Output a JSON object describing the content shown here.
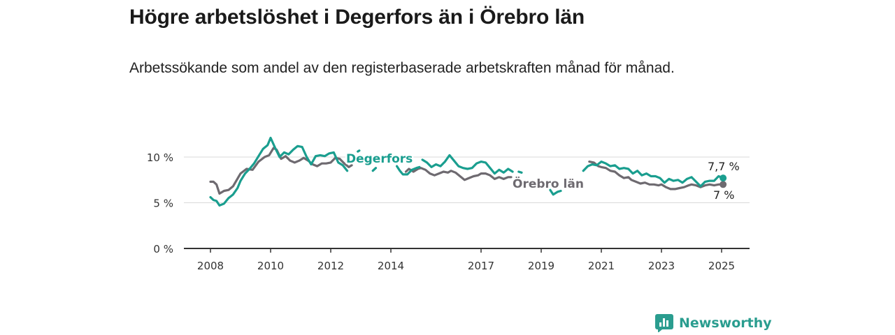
{
  "title": "Högre arbetslöshet i Degerfors än i Örebro län",
  "subtitle": "Arbetssökande som andel av den registerbaserade arbetskraften månad för månad.",
  "brand": {
    "name": "Newsworthy"
  },
  "colors": {
    "degerfors": "#1a9e8f",
    "orebro": "#6e6a70",
    "grid": "#d9d9d9",
    "axis": "#333333"
  },
  "chart_data": {
    "type": "line",
    "xlim": [
      2008.0,
      2025.5
    ],
    "ylim": [
      0,
      12.5
    ],
    "x_ticks": [
      {
        "label": "2008",
        "x": 2008.0
      },
      {
        "label": "2010",
        "x": 2010.0
      },
      {
        "label": "2012",
        "x": 2012.0
      },
      {
        "label": "2014",
        "x": 2014.0
      },
      {
        "label": "2017",
        "x": 2017.0
      },
      {
        "label": "2019",
        "x": 2019.0
      },
      {
        "label": "2021",
        "x": 2021.0
      },
      {
        "label": "2023",
        "x": 2023.0
      },
      {
        "label": "2025",
        "x": 2025.0
      }
    ],
    "y_ticks": [
      {
        "label": "0 %",
        "value": 0
      },
      {
        "label": "5 %",
        "value": 5
      },
      {
        "label": "10 %",
        "value": 10
      }
    ],
    "grid": true,
    "series": [
      {
        "name": "Örebro län",
        "color": "#6e6a70",
        "end_label": "7 %",
        "points": [
          [
            2008.0,
            7.3
          ],
          [
            2008.1,
            7.3
          ],
          [
            2008.2,
            7.0
          ],
          [
            2008.3,
            6.0
          ],
          [
            2008.45,
            6.3
          ],
          [
            2008.6,
            6.4
          ],
          [
            2008.75,
            6.8
          ],
          [
            2009.0,
            8.2
          ],
          [
            2009.2,
            8.7
          ],
          [
            2009.4,
            8.6
          ],
          [
            2009.6,
            9.5
          ],
          [
            2009.8,
            10.0
          ],
          [
            2009.95,
            10.2
          ],
          [
            2010.1,
            11.0
          ],
          [
            2010.2,
            10.8
          ],
          [
            2010.35,
            9.8
          ],
          [
            2010.5,
            10.1
          ],
          [
            2010.65,
            9.6
          ],
          [
            2010.8,
            9.4
          ],
          [
            2010.95,
            9.6
          ],
          [
            2011.1,
            9.9
          ],
          [
            2011.25,
            9.6
          ],
          [
            2011.4,
            9.2
          ],
          [
            2011.55,
            9.0
          ],
          [
            2011.7,
            9.3
          ],
          [
            2011.85,
            9.3
          ],
          [
            2012.0,
            9.4
          ],
          [
            2012.15,
            9.9
          ],
          [
            2012.3,
            9.8
          ],
          [
            2012.45,
            9.3
          ],
          [
            2012.6,
            8.9
          ],
          [
            2012.7,
            9.1
          ],
          null,
          [
            2014.5,
            8.4
          ],
          [
            2014.6,
            8.7
          ],
          [
            2014.75,
            8.4
          ],
          [
            2014.9,
            8.7
          ],
          [
            2015.0,
            8.8
          ],
          [
            2015.15,
            8.6
          ],
          [
            2015.3,
            8.2
          ],
          [
            2015.45,
            8.0
          ],
          [
            2015.6,
            8.2
          ],
          [
            2015.75,
            8.4
          ],
          [
            2015.9,
            8.3
          ],
          [
            2016.0,
            8.5
          ],
          [
            2016.15,
            8.3
          ],
          [
            2016.3,
            7.9
          ],
          [
            2016.45,
            7.5
          ],
          [
            2016.6,
            7.7
          ],
          [
            2016.75,
            7.9
          ],
          [
            2016.9,
            8.0
          ],
          [
            2017.0,
            8.2
          ],
          [
            2017.15,
            8.2
          ],
          [
            2017.3,
            8.0
          ],
          [
            2017.45,
            7.6
          ],
          [
            2017.6,
            7.8
          ],
          [
            2017.75,
            7.6
          ],
          [
            2017.9,
            7.8
          ],
          [
            2018.0,
            7.8
          ],
          null,
          [
            2020.6,
            9.5
          ],
          [
            2020.75,
            9.4
          ],
          [
            2020.9,
            9.0
          ],
          [
            2021.0,
            8.9
          ],
          [
            2021.15,
            8.8
          ],
          [
            2021.3,
            8.5
          ],
          [
            2021.45,
            8.4
          ],
          [
            2021.6,
            8.0
          ],
          [
            2021.75,
            7.7
          ],
          [
            2021.9,
            7.8
          ],
          [
            2022.0,
            7.5
          ],
          [
            2022.15,
            7.3
          ],
          [
            2022.3,
            7.1
          ],
          [
            2022.45,
            7.2
          ],
          [
            2022.6,
            7.0
          ],
          [
            2022.75,
            7.0
          ],
          [
            2022.9,
            6.9
          ],
          [
            2023.0,
            7.0
          ],
          [
            2023.15,
            6.7
          ],
          [
            2023.3,
            6.5
          ],
          [
            2023.45,
            6.5
          ],
          [
            2023.6,
            6.6
          ],
          [
            2023.75,
            6.7
          ],
          [
            2023.9,
            6.9
          ],
          [
            2024.0,
            7.0
          ],
          [
            2024.15,
            6.9
          ],
          [
            2024.3,
            6.7
          ],
          [
            2024.45,
            6.9
          ],
          [
            2024.6,
            7.0
          ],
          [
            2024.75,
            6.9
          ],
          [
            2024.9,
            7.0
          ],
          [
            2025.05,
            7.0
          ]
        ]
      },
      {
        "name": "Degerfors",
        "color": "#1a9e8f",
        "end_label": "7,7 %",
        "points": [
          [
            2008.0,
            5.6
          ],
          [
            2008.1,
            5.3
          ],
          [
            2008.2,
            5.2
          ],
          [
            2008.3,
            4.7
          ],
          [
            2008.45,
            4.9
          ],
          [
            2008.6,
            5.5
          ],
          [
            2008.75,
            5.9
          ],
          [
            2008.9,
            6.6
          ],
          [
            2009.0,
            7.4
          ],
          [
            2009.15,
            8.2
          ],
          [
            2009.3,
            8.7
          ],
          [
            2009.45,
            9.3
          ],
          [
            2009.6,
            10.1
          ],
          [
            2009.75,
            10.9
          ],
          [
            2009.9,
            11.3
          ],
          [
            2010.0,
            12.1
          ],
          [
            2010.15,
            11.0
          ],
          [
            2010.3,
            10.0
          ],
          [
            2010.45,
            10.5
          ],
          [
            2010.6,
            10.3
          ],
          [
            2010.75,
            10.8
          ],
          [
            2010.9,
            11.2
          ],
          [
            2011.05,
            11.1
          ],
          [
            2011.2,
            10.0
          ],
          [
            2011.35,
            9.2
          ],
          [
            2011.5,
            10.1
          ],
          [
            2011.65,
            10.2
          ],
          [
            2011.8,
            10.1
          ],
          [
            2011.95,
            10.4
          ],
          [
            2012.1,
            10.5
          ],
          [
            2012.25,
            9.4
          ],
          [
            2012.4,
            9.1
          ],
          [
            2012.55,
            8.5
          ],
          null,
          [
            2012.9,
            10.6
          ],
          [
            2012.95,
            10.7
          ],
          null,
          [
            2013.4,
            8.5
          ],
          [
            2013.5,
            8.8
          ],
          null,
          [
            2014.2,
            9.0
          ],
          [
            2014.3,
            8.5
          ],
          [
            2014.4,
            8.1
          ],
          [
            2014.55,
            8.1
          ],
          [
            2014.7,
            8.6
          ],
          [
            2014.85,
            8.8
          ],
          [
            2014.95,
            8.9
          ],
          null,
          [
            2015.05,
            9.7
          ],
          [
            2015.2,
            9.4
          ],
          [
            2015.35,
            8.9
          ],
          [
            2015.5,
            9.2
          ],
          [
            2015.65,
            9.0
          ],
          [
            2015.8,
            9.5
          ],
          [
            2015.95,
            10.2
          ],
          [
            2016.1,
            9.6
          ],
          [
            2016.25,
            9.0
          ],
          [
            2016.4,
            8.8
          ],
          [
            2016.55,
            8.7
          ],
          [
            2016.7,
            8.8
          ],
          [
            2016.85,
            9.3
          ],
          [
            2017.0,
            9.5
          ],
          [
            2017.15,
            9.4
          ],
          [
            2017.3,
            8.8
          ],
          [
            2017.45,
            8.2
          ],
          [
            2017.6,
            8.6
          ],
          [
            2017.75,
            8.3
          ],
          [
            2017.9,
            8.7
          ],
          [
            2018.05,
            8.4
          ],
          null,
          [
            2018.25,
            8.4
          ],
          [
            2018.35,
            8.3
          ],
          null,
          [
            2019.3,
            6.4
          ],
          [
            2019.4,
            5.9
          ],
          [
            2019.55,
            6.2
          ],
          [
            2019.65,
            6.3
          ],
          null,
          [
            2020.4,
            8.5
          ],
          [
            2020.55,
            9.0
          ],
          [
            2020.7,
            9.2
          ],
          [
            2020.85,
            9.1
          ],
          [
            2021.0,
            9.5
          ],
          [
            2021.15,
            9.3
          ],
          [
            2021.3,
            9.0
          ],
          [
            2021.45,
            9.1
          ],
          [
            2021.6,
            8.7
          ],
          [
            2021.75,
            8.8
          ],
          [
            2021.9,
            8.7
          ],
          [
            2022.05,
            8.2
          ],
          [
            2022.2,
            8.5
          ],
          [
            2022.35,
            8.0
          ],
          [
            2022.5,
            8.2
          ],
          [
            2022.65,
            7.9
          ],
          [
            2022.8,
            7.9
          ],
          [
            2022.95,
            7.7
          ],
          [
            2023.1,
            7.2
          ],
          [
            2023.25,
            7.6
          ],
          [
            2023.4,
            7.4
          ],
          [
            2023.55,
            7.5
          ],
          [
            2023.7,
            7.2
          ],
          [
            2023.85,
            7.6
          ],
          [
            2024.0,
            7.8
          ],
          [
            2024.15,
            7.3
          ],
          [
            2024.3,
            6.8
          ],
          [
            2024.45,
            7.3
          ],
          [
            2024.6,
            7.4
          ],
          [
            2024.75,
            7.4
          ],
          [
            2024.9,
            7.9
          ],
          [
            2025.05,
            7.7
          ]
        ]
      }
    ],
    "inline_labels": [
      {
        "series": "Degerfors",
        "text": "Degerfors"
      },
      {
        "series": "Örebro län",
        "text": "Örebro län"
      }
    ]
  }
}
